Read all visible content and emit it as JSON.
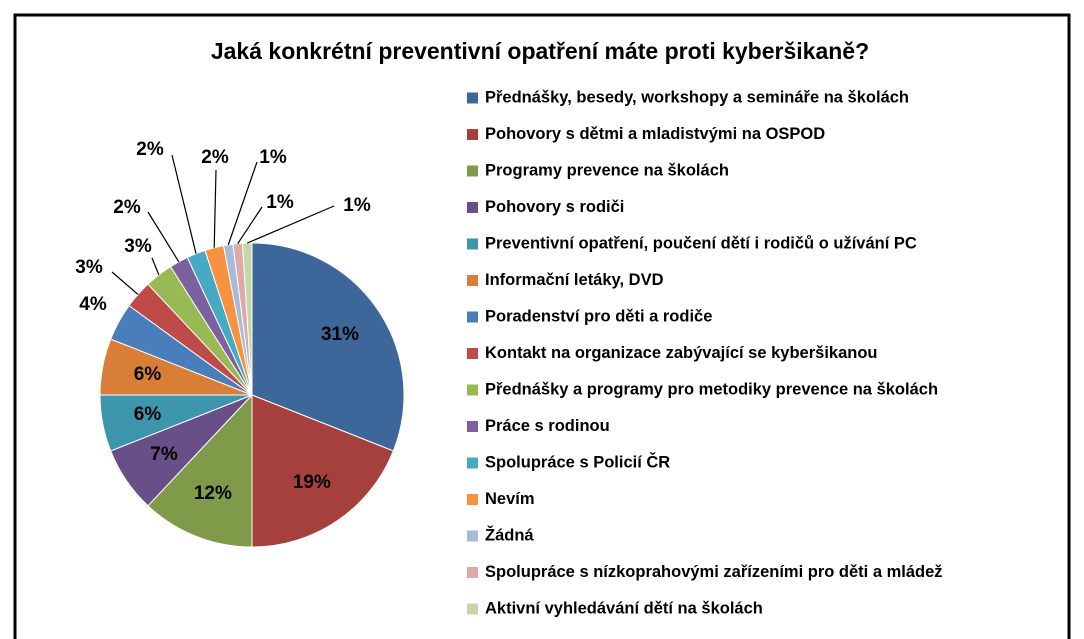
{
  "chart_data": {
    "type": "pie",
    "title": "Jaká konkrétní preventivní opatření máte proti kyberšikaně?",
    "categories": [
      "Přednášky, besedy, workshopy a semináře na školách",
      "Pohovory s dětmi a mladistvými na OSPOD",
      "Programy prevence na školách",
      "Pohovory s rodiči",
      "Preventivní opatření, poučení  dětí i rodičů o užívání PC",
      "Informační letáky, DVD",
      "Poradenství pro děti a rodiče",
      "Kontakt na organizace zabývající se kyberšikanou",
      "Přednášky a programy pro metodiky prevence na školách",
      "Práce s rodinou",
      "Spolupráce s Policií ČR",
      "Nevím",
      "Žádná",
      "Spolupráce s nízkoprahovými zařízeními pro děti a mládež",
      "Aktivní vyhledávání dětí na školách"
    ],
    "values": [
      31,
      19,
      12,
      7,
      6,
      6,
      4,
      3,
      3,
      2,
      2,
      2,
      1,
      1,
      1
    ],
    "value_labels": [
      "31%",
      "19%",
      "12%",
      "7%",
      "6%",
      "6%",
      "4%",
      "3%",
      "3%",
      "2%",
      "2%",
      "2%",
      "1%",
      "1%",
      "1%"
    ],
    "colors": [
      "#3D679B",
      "#A5403D",
      "#7F9A48",
      "#694F88",
      "#3D96AD",
      "#D97E36",
      "#4A7EBB",
      "#BE4B48",
      "#98B954",
      "#7D60A0",
      "#46AAC5",
      "#F69240",
      "#A9B9D8",
      "#DBA9A8",
      "#C5D7A9"
    ],
    "legend": "right"
  }
}
